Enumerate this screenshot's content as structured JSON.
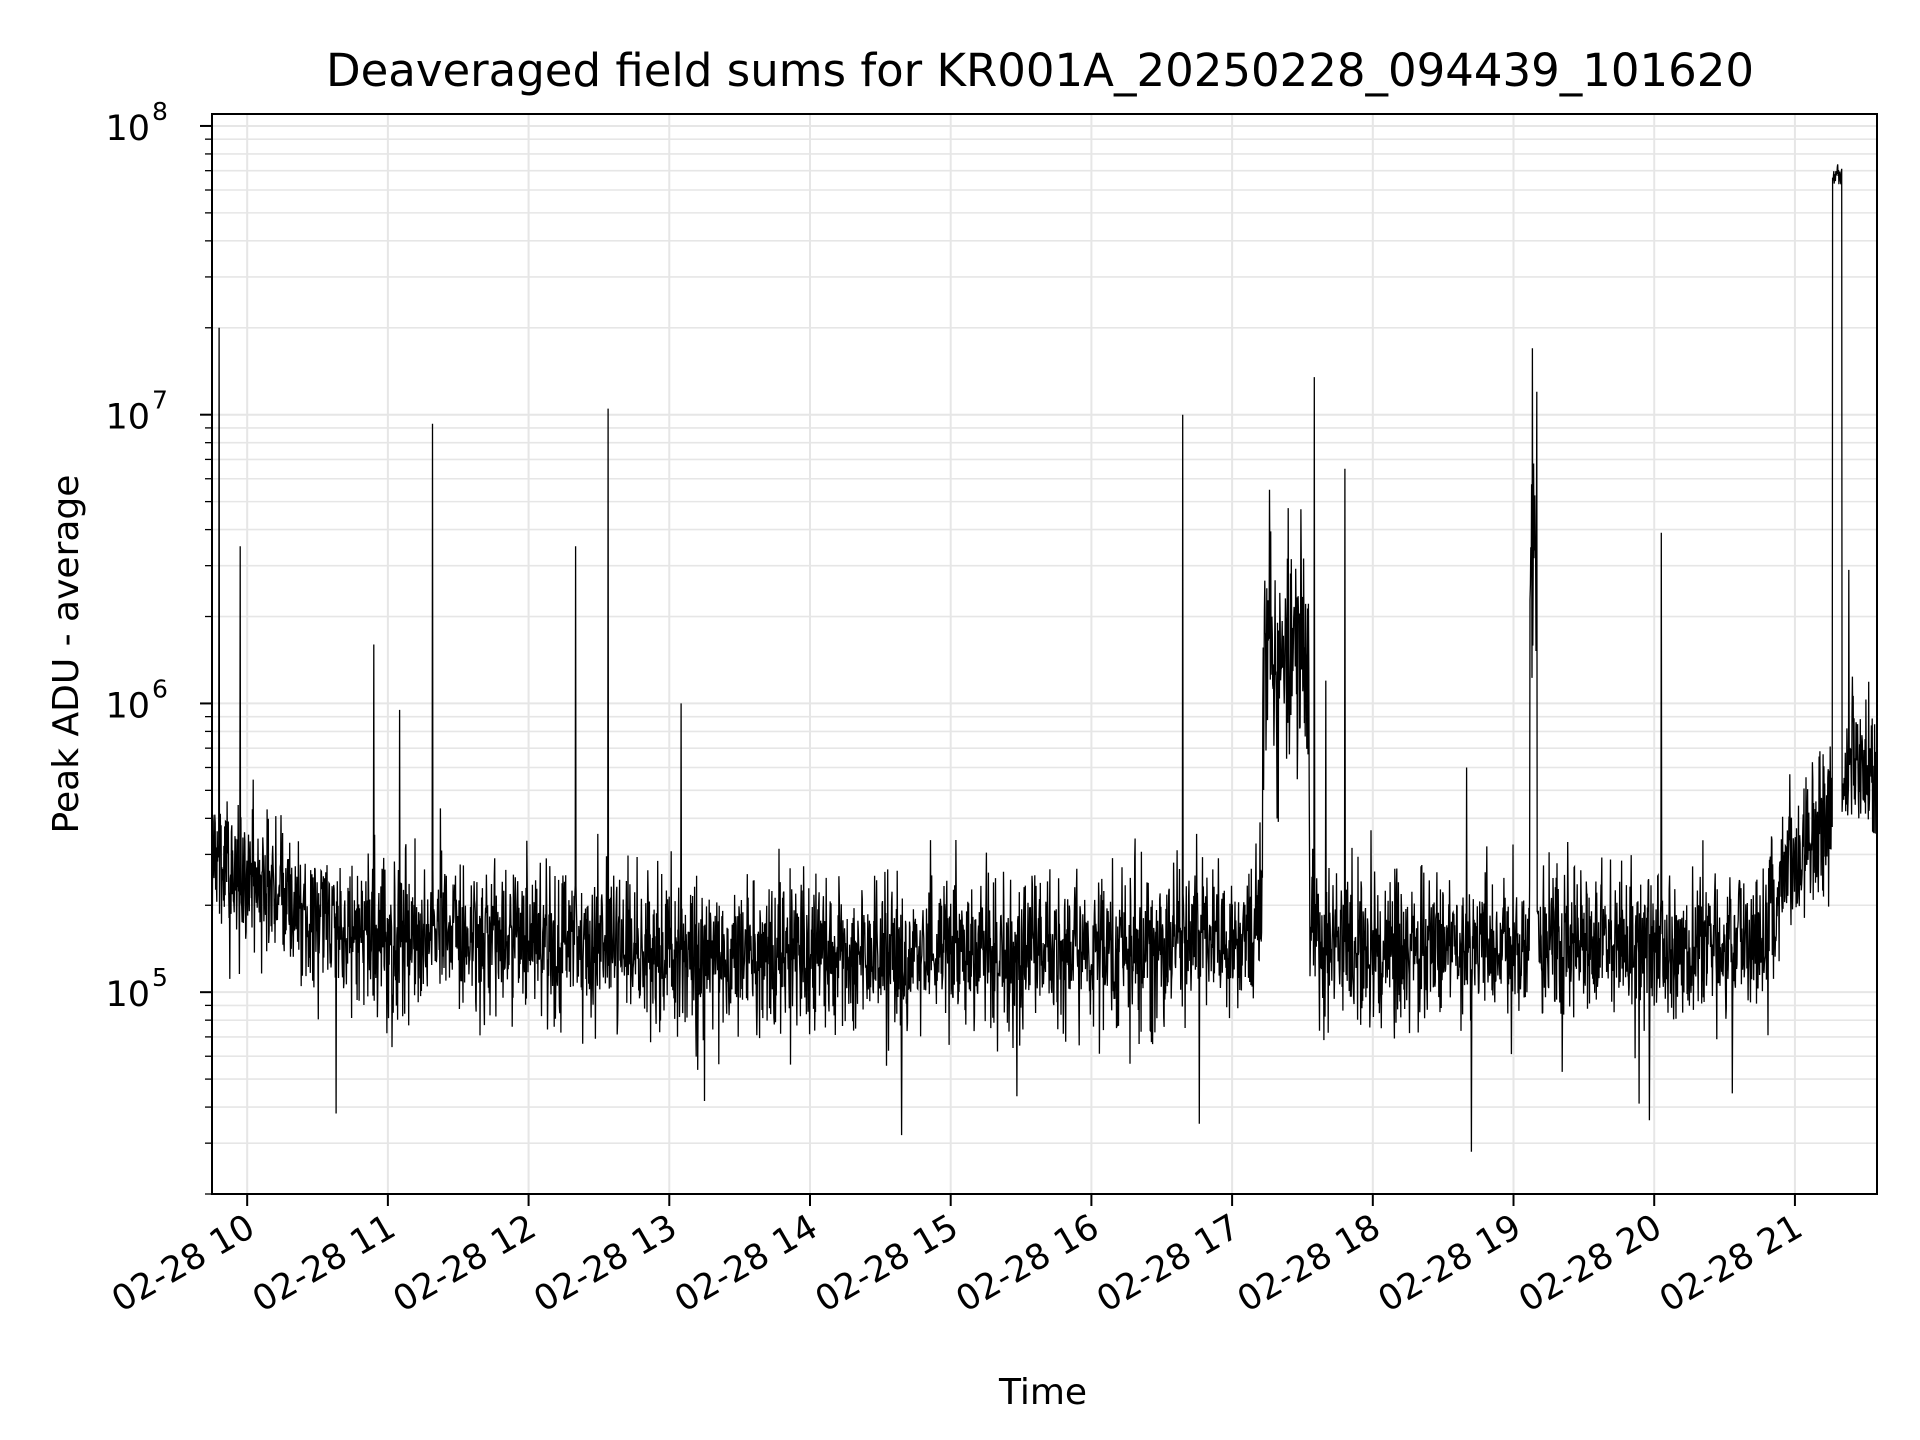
{
  "chart_data": {
    "type": "line",
    "title": "Deaveraged field sums for KR001A_20250228_094439_101620",
    "xlabel": "Time",
    "ylabel": "Peak ADU - average",
    "yscale": "log",
    "ylim": [
      20000,
      110000000
    ],
    "xlim": [
      "2025-02-28 09:45",
      "2025-02-28 21:35"
    ],
    "grid": true,
    "line_color": "#000000",
    "grid_color": "#e6e6e6",
    "x_ticks": [
      {
        "value": "2025-02-28 10:00",
        "label": "02-28 10"
      },
      {
        "value": "2025-02-28 11:00",
        "label": "02-28 11"
      },
      {
        "value": "2025-02-28 12:00",
        "label": "02-28 12"
      },
      {
        "value": "2025-02-28 13:00",
        "label": "02-28 13"
      },
      {
        "value": "2025-02-28 14:00",
        "label": "02-28 14"
      },
      {
        "value": "2025-02-28 15:00",
        "label": "02-28 15"
      },
      {
        "value": "2025-02-28 16:00",
        "label": "02-28 16"
      },
      {
        "value": "2025-02-28 17:00",
        "label": "02-28 17"
      },
      {
        "value": "2025-02-28 18:00",
        "label": "02-28 18"
      },
      {
        "value": "2025-02-28 19:00",
        "label": "02-28 19"
      },
      {
        "value": "2025-02-28 20:00",
        "label": "02-28 20"
      },
      {
        "value": "2025-02-28 21:00",
        "label": "02-28 21"
      }
    ],
    "y_ticks": [
      {
        "value": 100000,
        "base": "10",
        "exp": "5"
      },
      {
        "value": 1000000,
        "base": "10",
        "exp": "6"
      },
      {
        "value": 10000000,
        "base": "10",
        "exp": "7"
      },
      {
        "value": 100000000,
        "base": "10",
        "exp": "8"
      }
    ],
    "baseline": [
      [
        "2025-02-28 09:45",
        280000
      ],
      [
        "2025-02-28 10:15",
        200000
      ],
      [
        "2025-02-28 10:45",
        160000
      ],
      [
        "2025-02-28 12:00",
        150000
      ],
      [
        "2025-02-28 14:00",
        130000
      ],
      [
        "2025-02-28 15:00",
        135000
      ],
      [
        "2025-02-28 16:00",
        140000
      ],
      [
        "2025-02-28 17:00",
        150000
      ],
      [
        "2025-02-28 17:15",
        180000
      ],
      [
        "2025-02-28 17:35",
        160000
      ],
      [
        "2025-02-28 18:00",
        140000
      ],
      [
        "2025-02-28 19:00",
        150000
      ],
      [
        "2025-02-28 20:00",
        145000
      ],
      [
        "2025-02-28 20:45",
        150000
      ],
      [
        "2025-02-28 21:00",
        300000
      ],
      [
        "2025-02-28 21:15",
        420000
      ],
      [
        "2025-02-28 21:25",
        700000
      ],
      [
        "2025-02-28 21:35",
        550000
      ]
    ],
    "bursts": [
      {
        "start": "2025-02-28 17:13",
        "end": "2025-02-28 17:33",
        "level": 1500000
      },
      {
        "start": "2025-02-28 19:07",
        "end": "2025-02-28 19:10",
        "level": 3000000
      },
      {
        "start": "2025-02-28 21:16",
        "end": "2025-02-28 21:20",
        "level": 68000000
      }
    ],
    "spikes": [
      [
        "2025-02-28 09:48",
        20000000
      ],
      [
        "2025-02-28 09:57",
        3500000
      ],
      [
        "2025-02-28 10:54",
        1600000
      ],
      [
        "2025-02-28 11:05",
        950000
      ],
      [
        "2025-02-28 11:19",
        9300000
      ],
      [
        "2025-02-28 12:20",
        3500000
      ],
      [
        "2025-02-28 12:34",
        10500000
      ],
      [
        "2025-02-28 13:05",
        1000000
      ],
      [
        "2025-02-28 16:39",
        10000000
      ],
      [
        "2025-02-28 17:16",
        5500000
      ],
      [
        "2025-02-28 17:35",
        13500000
      ],
      [
        "2025-02-28 17:40",
        1200000
      ],
      [
        "2025-02-28 17:48",
        6500000
      ],
      [
        "2025-02-28 18:40",
        600000
      ],
      [
        "2025-02-28 19:08",
        17000000
      ],
      [
        "2025-02-28 19:10",
        12000000
      ],
      [
        "2025-02-28 20:03",
        3900000
      ],
      [
        "2025-02-28 21:23",
        2900000
      ]
    ],
    "dips": [
      [
        "2025-02-28 10:38",
        38000
      ],
      [
        "2025-02-28 13:15",
        42000
      ],
      [
        "2025-02-28 14:39",
        32000
      ],
      [
        "2025-02-28 16:46",
        35000
      ],
      [
        "2025-02-28 18:42",
        28000
      ],
      [
        "2025-02-28 19:58",
        36000
      ]
    ]
  }
}
